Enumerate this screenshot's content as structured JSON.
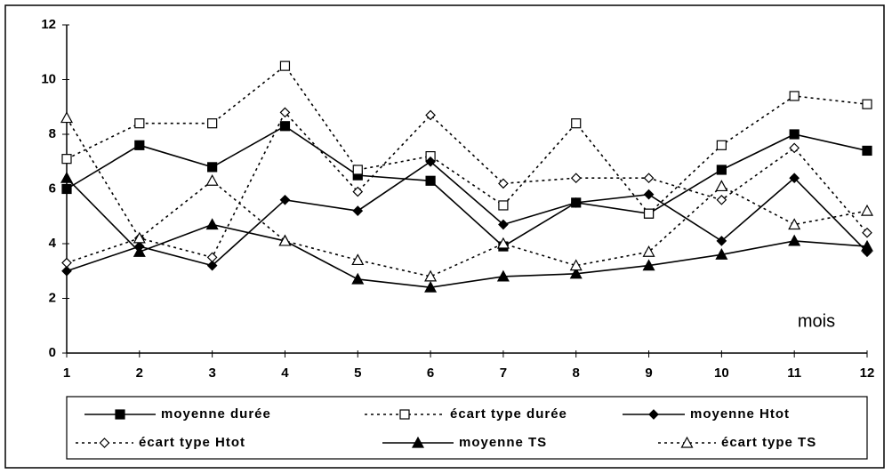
{
  "chart_data": {
    "type": "line",
    "x_label": "mois",
    "x": [
      1,
      2,
      3,
      4,
      5,
      6,
      7,
      8,
      9,
      10,
      11,
      12
    ],
    "xlim": [
      1,
      12
    ],
    "xticks": [
      1,
      2,
      3,
      4,
      5,
      6,
      7,
      8,
      9,
      10,
      11,
      12
    ],
    "ylim": [
      0,
      12
    ],
    "yticks": [
      0,
      2,
      4,
      6,
      8,
      10,
      12
    ],
    "grid": false,
    "legend": "bottom",
    "series": [
      {
        "name": "moyenne durée",
        "color": "#000000",
        "dash": "solid",
        "marker": "filled-square",
        "values": [
          6.0,
          7.6,
          6.8,
          8.3,
          6.5,
          6.3,
          3.9,
          5.5,
          5.1,
          6.7,
          8.0,
          7.4
        ]
      },
      {
        "name": "écart type durée",
        "color": "#000000",
        "dash": "dotted",
        "marker": "open-square",
        "values": [
          7.1,
          8.4,
          8.4,
          10.5,
          6.7,
          7.2,
          5.4,
          8.4,
          5.1,
          7.6,
          9.4,
          9.1
        ]
      },
      {
        "name": "moyenne Htot",
        "color": "#000000",
        "dash": "solid",
        "marker": "filled-diamond",
        "values": [
          3.0,
          3.9,
          3.2,
          5.6,
          5.2,
          7.0,
          4.7,
          5.5,
          5.8,
          4.1,
          6.4,
          3.7
        ]
      },
      {
        "name": "écart type Htot",
        "color": "#000000",
        "dash": "dotted",
        "marker": "open-diamond",
        "values": [
          3.3,
          4.2,
          3.5,
          8.8,
          5.9,
          8.7,
          6.2,
          6.4,
          6.4,
          5.6,
          7.5,
          4.4
        ]
      },
      {
        "name": "moyenne TS",
        "color": "#000000",
        "dash": "solid",
        "marker": "filled-triangle",
        "values": [
          6.4,
          3.7,
          4.7,
          4.1,
          2.7,
          2.4,
          2.8,
          2.9,
          3.2,
          3.6,
          4.1,
          3.9
        ]
      },
      {
        "name": "écart type TS",
        "color": "#000000",
        "dash": "dotted",
        "marker": "open-triangle",
        "values": [
          8.6,
          4.2,
          6.3,
          4.1,
          3.4,
          2.8,
          4.0,
          3.2,
          3.7,
          6.1,
          4.7,
          5.2
        ]
      }
    ]
  }
}
